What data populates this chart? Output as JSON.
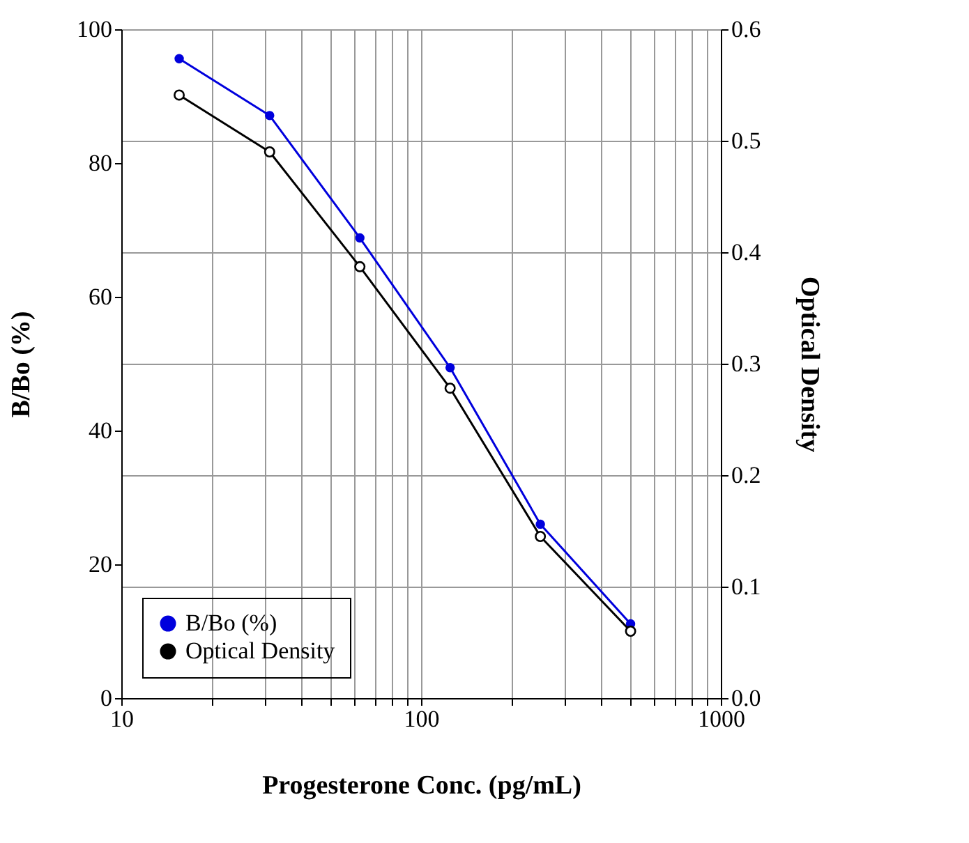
{
  "chart_data": {
    "type": "line",
    "xlabel": "Progesterone Conc. (pg/mL)",
    "ylabel": "B/Bo (%)",
    "y2label": "Optical Density",
    "x": [
      15.6,
      31.25,
      62.5,
      125,
      250,
      500
    ],
    "series": [
      {
        "name": "B/Bo (%)",
        "color": "#0000dd",
        "values": [
          95.6,
          87.1,
          68.8,
          49.4,
          26.0,
          11.1
        ]
      },
      {
        "name": "Optical Density",
        "color": "#000000",
        "axis": "y2",
        "values": [
          0.541,
          0.49,
          0.387,
          0.278,
          0.145,
          0.06
        ]
      }
    ],
    "log": "x",
    "xlim": [
      10,
      1000
    ],
    "xticks": [
      10,
      {
        "value": 20,
        "label": null
      },
      {
        "value": 30,
        "label": null
      },
      {
        "value": 40,
        "label": null
      },
      {
        "value": 50,
        "label": null
      },
      {
        "value": 60,
        "label": null
      },
      {
        "value": 70,
        "label": null
      },
      {
        "value": 80,
        "label": null
      },
      {
        "value": 90,
        "label": null
      },
      100,
      {
        "value": 200,
        "label": null
      },
      {
        "value": 300,
        "label": null
      },
      {
        "value": 400,
        "label": null
      },
      {
        "value": 500,
        "label": null
      },
      {
        "value": 600,
        "label": null
      },
      {
        "value": 700,
        "label": null
      },
      {
        "value": 800,
        "label": null
      },
      {
        "value": 900,
        "label": null
      },
      1000
    ],
    "ylim": [
      0,
      100
    ],
    "yticks": [
      0,
      20,
      40,
      60,
      80,
      100
    ],
    "y2lim": [
      0,
      0.6
    ],
    "y2ticks": [
      {
        "value": 0,
        "label": "0.0"
      },
      0.1,
      0.2,
      0.3,
      0.4,
      0.5,
      0.6
    ],
    "grid": true,
    "legend": "bottom left",
    "marker": "circle",
    "line_style": "solid"
  }
}
